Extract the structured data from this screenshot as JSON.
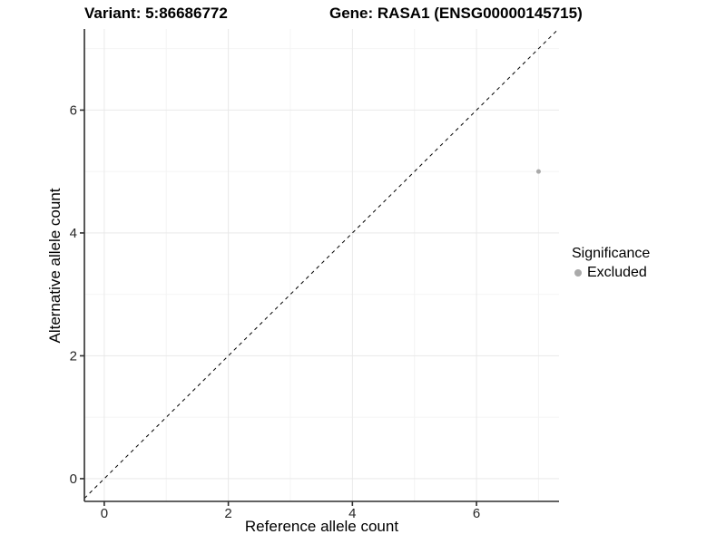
{
  "colors": {
    "background": "#ffffff",
    "grid_major": "#e9e9e9",
    "grid_minor": "#f4f4f4",
    "axis": "#2e2e2e",
    "tick_text": "#262626",
    "title_text": "#000000",
    "point": "#aaaaaa"
  },
  "chart_data": {
    "type": "scatter",
    "titles": [
      "Variant: 5:86686772",
      "Gene: RASA1 (ENSG00000145715)"
    ],
    "xlabel": "Reference allele count",
    "ylabel": "Alternative allele count",
    "xlim": [
      -0.32,
      7.33
    ],
    "ylim": [
      -0.37,
      7.32
    ],
    "x_ticks": [
      0,
      2,
      4,
      6
    ],
    "y_ticks": [
      0,
      2,
      4,
      6
    ],
    "x_minor_ticks": [
      1,
      3,
      5,
      7
    ],
    "y_minor_ticks": [
      1,
      3,
      5,
      7
    ],
    "grid": "major+minor",
    "legend": {
      "position": "right",
      "title": "Significance",
      "items": [
        {
          "label": "Excluded",
          "color": "#aaaaaa"
        }
      ]
    },
    "series": [
      {
        "name": "Excluded",
        "color": "#aaaaaa",
        "points": [
          [
            7,
            5
          ]
        ]
      }
    ],
    "reference_line": {
      "shape": "identity y=x",
      "style": "dashed",
      "color": "#000000",
      "from": [
        -0.32,
        -0.32
      ],
      "to": [
        7.32,
        7.32
      ]
    }
  }
}
